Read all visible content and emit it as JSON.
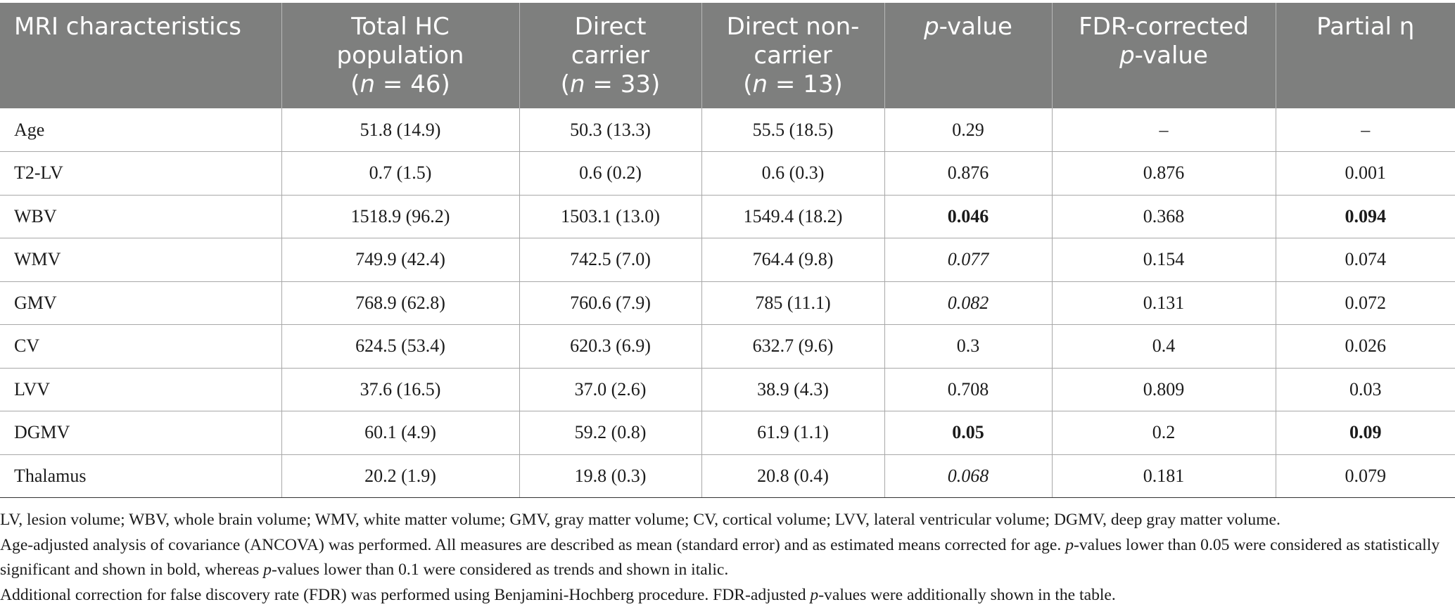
{
  "table": {
    "headers": [
      {
        "lines": [
          "MRI characteristics"
        ],
        "n": ""
      },
      {
        "lines": [
          "Total HC",
          "population"
        ],
        "n": "46"
      },
      {
        "lines": [
          "Direct",
          "carrier"
        ],
        "n": "33"
      },
      {
        "lines": [
          "Direct non-",
          "carrier"
        ],
        "n": "13"
      },
      {
        "lines": [
          "-value"
        ],
        "n": ""
      },
      {
        "lines": [
          "FDR-corrected",
          "-value"
        ],
        "n": ""
      },
      {
        "lines": [
          "Partial η"
        ],
        "n": ""
      }
    ],
    "header_italic_p": "p",
    "header_italic_n": "n",
    "header_eq": " = ",
    "rows": [
      {
        "label": "Age",
        "cells": [
          "51.8 (14.9)",
          "50.3 (13.3)",
          "55.5 (18.5)",
          "0.29",
          "–",
          "–"
        ],
        "pstyle": "normal",
        "etastyle": "normal"
      },
      {
        "label": "T2-LV",
        "cells": [
          "0.7 (1.5)",
          "0.6 (0.2)",
          "0.6 (0.3)",
          "0.876",
          "0.876",
          "0.001"
        ],
        "pstyle": "normal",
        "etastyle": "normal"
      },
      {
        "label": "WBV",
        "cells": [
          "1518.9 (96.2)",
          "1503.1 (13.0)",
          "1549.4 (18.2)",
          "0.046",
          "0.368",
          "0.094"
        ],
        "pstyle": "bold",
        "etastyle": "bold"
      },
      {
        "label": "WMV",
        "cells": [
          "749.9 (42.4)",
          "742.5 (7.0)",
          "764.4 (9.8)",
          "0.077",
          "0.154",
          "0.074"
        ],
        "pstyle": "italic",
        "etastyle": "normal"
      },
      {
        "label": "GMV",
        "cells": [
          "768.9 (62.8)",
          "760.6 (7.9)",
          "785 (11.1)",
          "0.082",
          "0.131",
          "0.072"
        ],
        "pstyle": "italic",
        "etastyle": "normal"
      },
      {
        "label": "CV",
        "cells": [
          "624.5 (53.4)",
          "620.3 (6.9)",
          "632.7 (9.6)",
          "0.3",
          "0.4",
          "0.026"
        ],
        "pstyle": "normal",
        "etastyle": "normal"
      },
      {
        "label": "LVV",
        "cells": [
          "37.6 (16.5)",
          "37.0 (2.6)",
          "38.9 (4.3)",
          "0.708",
          "0.809",
          "0.03"
        ],
        "pstyle": "normal",
        "etastyle": "normal"
      },
      {
        "label": "DGMV",
        "cells": [
          "60.1 (4.9)",
          "59.2 (0.8)",
          "61.9 (1.1)",
          "0.05",
          "0.2",
          "0.09"
        ],
        "pstyle": "bold",
        "etastyle": "bold"
      },
      {
        "label": "Thalamus",
        "cells": [
          "20.2 (1.9)",
          "19.8 (0.3)",
          "20.8 (0.4)",
          "0.068",
          "0.181",
          "0.079"
        ],
        "pstyle": "italic",
        "etastyle": "normal"
      }
    ]
  },
  "notes": {
    "line1": "LV, lesion volume; WBV, whole brain volume; WMV, white matter volume; GMV, gray matter volume; CV, cortical volume; LVV, lateral ventricular volume; DGMV, deep gray matter volume.",
    "line2_a": "Age-adjusted analysis of covariance (ANCOVA) was performed. All measures are described as mean (standard error) and as estimated means corrected for age. ",
    "line2_p": "p",
    "line2_b": "-values lower than 0.05 were considered as statistically significant and shown in bold, whereas ",
    "line2_p2": "p",
    "line2_c": "-values lower than 0.1 were considered as trends and shown in italic.",
    "line3_a": "Additional correction for false discovery rate (FDR) was performed using Benjamini-Hochberg procedure. FDR-adjusted ",
    "line3_p": "p",
    "line3_b": "-values were additionally shown in the table."
  },
  "colors": {
    "header_bg": "#7e7f7e",
    "header_text": "#ffffff",
    "grid": "#a8a8a8"
  }
}
